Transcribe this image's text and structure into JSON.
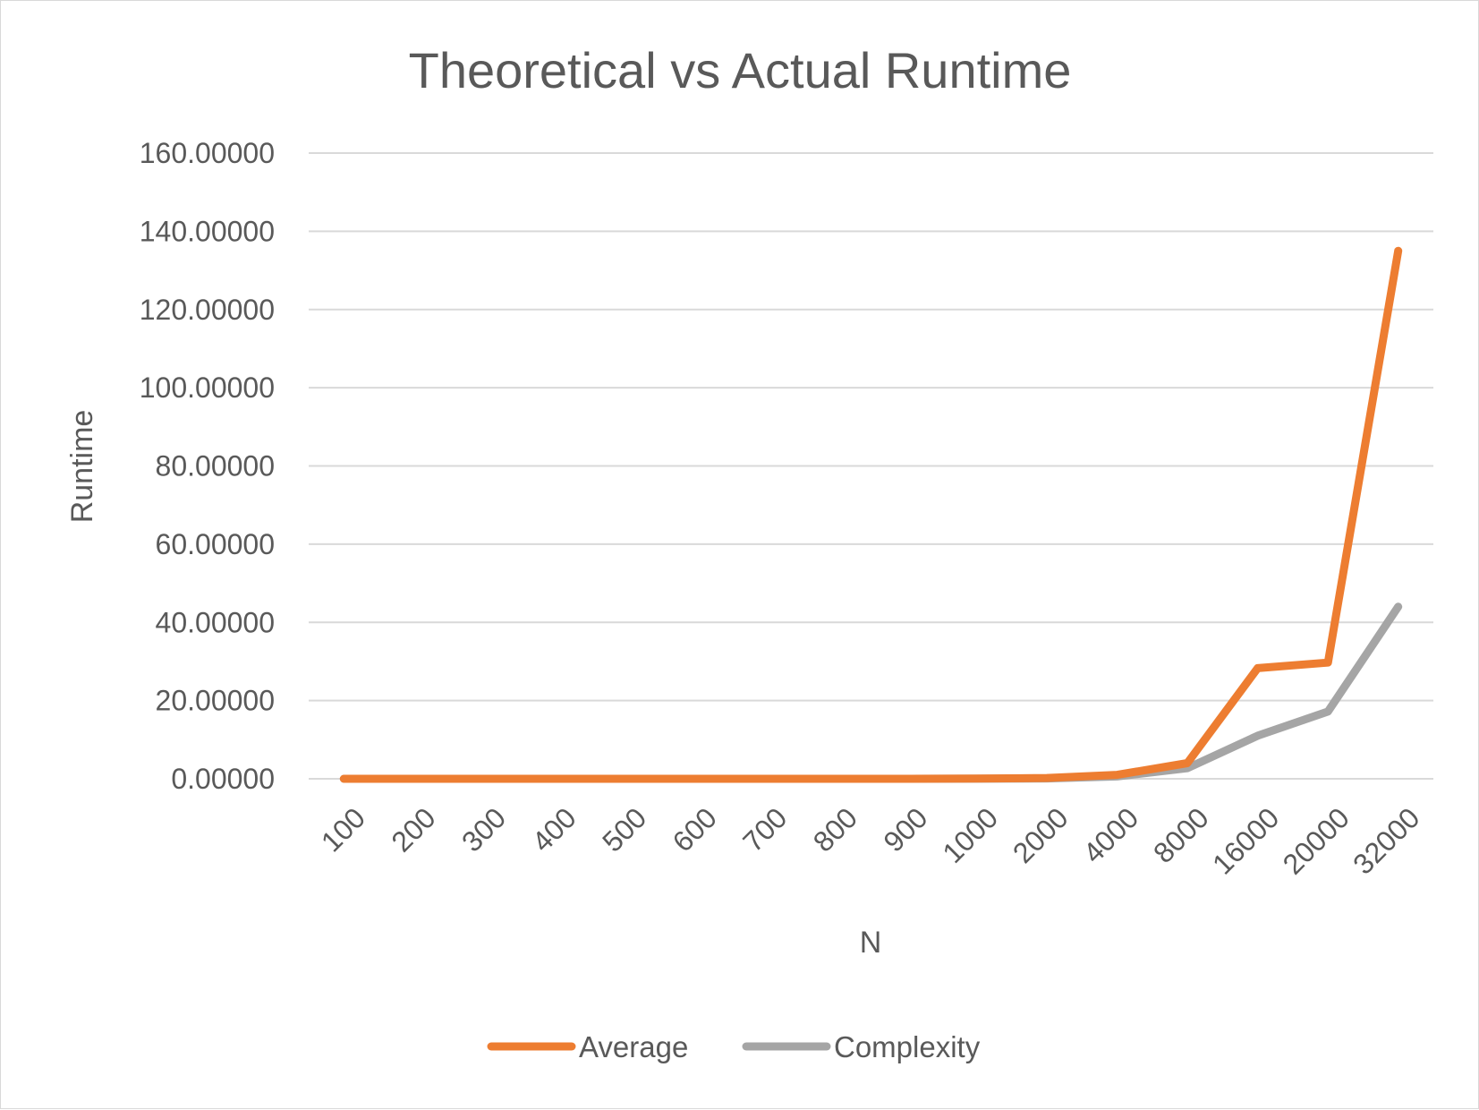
{
  "chart_data": {
    "type": "line",
    "title": "Theoretical vs Actual Runtime",
    "xlabel": "N",
    "ylabel": "Runtime",
    "categories": [
      "100",
      "200",
      "300",
      "400",
      "500",
      "600",
      "700",
      "800",
      "900",
      "1000",
      "2000",
      "4000",
      "8000",
      "16000",
      "20000",
      "32000"
    ],
    "y_ticks": [
      "0.00000",
      "20.00000",
      "40.00000",
      "60.00000",
      "80.00000",
      "100.00000",
      "120.00000",
      "140.00000",
      "160.00000"
    ],
    "ylim": [
      0,
      160
    ],
    "grid": true,
    "legend_position": "bottom",
    "series": [
      {
        "name": "Average",
        "color": "#ed7d31",
        "values": [
          0,
          0,
          0,
          0,
          0,
          0,
          0,
          0,
          0,
          0.05,
          0.2,
          1.0,
          4.0,
          28.3,
          29.7,
          135.0
        ]
      },
      {
        "name": "Complexity",
        "color": "#a5a5a5",
        "values": [
          0,
          0,
          0,
          0,
          0,
          0,
          0,
          0,
          0,
          0.02,
          0.1,
          0.6,
          2.7,
          11.0,
          17.2,
          44.0
        ]
      }
    ]
  }
}
